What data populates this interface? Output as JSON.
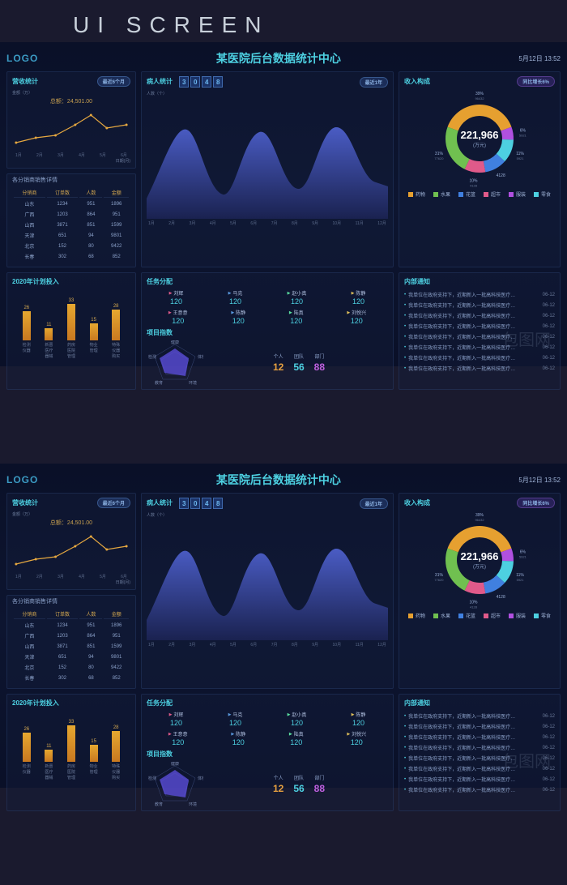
{
  "watermark_header": "UI SCREEN",
  "header": {
    "logo": "LOGO",
    "title": "某医院后台数据统计中心",
    "datetime": "5月12日 13:52"
  },
  "revenue": {
    "title": "营收统计",
    "badge": "最近6个月",
    "y_label": "金额（万）",
    "x_label": "日期(月)",
    "total_label": "总额：",
    "total_value": "24,501.00",
    "y_ticks": [
      "1",
      "2",
      "3"
    ],
    "x_ticks": [
      "1月",
      "2月",
      "3月",
      "4月",
      "5月",
      "6月"
    ],
    "line_color": "#e6a840",
    "points": [
      15,
      25,
      30,
      50,
      70,
      48,
      55
    ]
  },
  "distributor_table": {
    "title": "各分销商销售详情",
    "columns": [
      "分销商",
      "订单数",
      "人数",
      "金额"
    ],
    "rows": [
      [
        "山东",
        "1234",
        "951",
        "1896"
      ],
      [
        "广西",
        "1203",
        "864",
        "951"
      ],
      [
        "山西",
        "3871",
        "851",
        "1599"
      ],
      [
        "天津",
        "651",
        "94",
        "9801"
      ],
      [
        "北京",
        "152",
        "80",
        "9422"
      ],
      [
        "长春",
        "302",
        "68",
        "852"
      ]
    ]
  },
  "bar_chart": {
    "title": "2020年计划投入",
    "bars": [
      {
        "label": "检测\n仪器",
        "value": 26
      },
      {
        "label": "新晋医\n疗器械",
        "value": 11
      },
      {
        "label": "药房医\n院管理",
        "value": 33
      },
      {
        "label": "物业\n管理",
        "value": 15
      },
      {
        "label": "特殊仪\n器购买",
        "value": 28
      }
    ],
    "max": 40,
    "bar_color_top": "#e6a830",
    "bar_color_bot": "#c87820"
  },
  "patient": {
    "title": "病人统计",
    "digits": [
      "3",
      "0",
      "4",
      "8"
    ],
    "badge": "最近1年",
    "y_label": "人数（个）",
    "months": [
      "1月",
      "2月",
      "3月",
      "4月",
      "5月",
      "6月",
      "7月",
      "8月",
      "9月",
      "10月",
      "11月",
      "12月"
    ],
    "fill_top": "#4a5cc4",
    "fill_bot": "#2a3880"
  },
  "tasks": {
    "title": "任务分配",
    "row1": [
      {
        "marker": "r",
        "name": "刘辉",
        "value": "120"
      },
      {
        "marker": "b",
        "name": "马克",
        "value": "120"
      },
      {
        "marker": "g",
        "name": "赵小真",
        "value": "120"
      },
      {
        "marker": "y",
        "name": "陈静",
        "value": "120"
      }
    ],
    "row2": [
      {
        "marker": "r",
        "name": "王意意",
        "value": "120"
      },
      {
        "marker": "b",
        "name": "陈静",
        "value": "120"
      },
      {
        "marker": "g",
        "name": "陆真",
        "value": "120"
      },
      {
        "marker": "y",
        "name": "刘悦兴",
        "value": "120"
      }
    ],
    "project_title": "项目指数",
    "radar_axes": [
      "健康",
      "体检",
      "环境",
      "教育",
      "检测"
    ],
    "radar_fill": "#5a4cd8",
    "kpis": [
      {
        "label": "个人",
        "value": "12",
        "cls": "o"
      },
      {
        "label": "团队",
        "value": "56",
        "cls": "c"
      },
      {
        "label": "部门",
        "value": "88",
        "cls": "p"
      }
    ]
  },
  "donut": {
    "title": "收入构成",
    "badge": "同比增长6%",
    "center_value": "221,966",
    "center_unit": "(万元)",
    "slices": [
      {
        "label": "39%",
        "sub": "96432",
        "color": "#e6a030",
        "start": 200,
        "end": 340
      },
      {
        "label": "6%",
        "sub": "5921",
        "color": "#b050e0",
        "start": 340,
        "end": 362
      },
      {
        "label": "11%",
        "sub": "5921",
        "color": "#4dd0e1",
        "start": 362,
        "end": 402
      },
      {
        "label": "4128",
        "sub": "",
        "color": "#4080e0",
        "start": 402,
        "end": 440
      },
      {
        "label": "10%",
        "sub": "4128",
        "color": "#e05a8a",
        "start": 440,
        "end": 476
      },
      {
        "label": "31%",
        "sub": "77620",
        "color": "#70c050",
        "start": 476,
        "end": 560
      }
    ],
    "legend": [
      {
        "color": "#e6a030",
        "label": "药物"
      },
      {
        "color": "#70c050",
        "label": "水果"
      },
      {
        "color": "#4080e0",
        "label": "花篮"
      },
      {
        "color": "#e05a8a",
        "label": "超市"
      },
      {
        "color": "#b050e0",
        "label": "服装"
      },
      {
        "color": "#4dd0e1",
        "label": "零食"
      }
    ]
  },
  "notices": {
    "title": "内部通知",
    "items": [
      {
        "text": "我单位在政府支持下，近期新入一批高科技医疗…",
        "date": "06-12"
      },
      {
        "text": "我单位在政府支持下，近期新入一批高科技医疗…",
        "date": "06-12"
      },
      {
        "text": "我单位在政府支持下，近期新入一批高科技医疗…",
        "date": "06-12"
      },
      {
        "text": "我单位在政府支持下，近期新入一批高科技医疗…",
        "date": "06-12"
      },
      {
        "text": "我单位在政府支持下，近期新入一批高科技医疗…",
        "date": "06-12"
      },
      {
        "text": "我单位在政府支持下，近期新入一批高科技医疗…",
        "date": "06-12"
      },
      {
        "text": "我单位在政府支持下，近期新入一批高科技医疗…",
        "date": "06-12"
      },
      {
        "text": "我单位在政府支持下，近期新入一批高科技医疗…",
        "date": "06-12"
      }
    ]
  },
  "bao_watermark": "包图网"
}
